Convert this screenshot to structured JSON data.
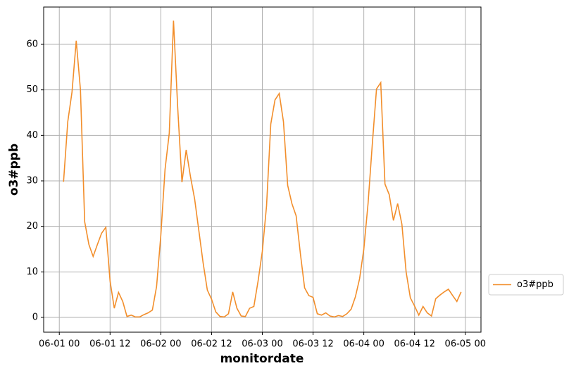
{
  "chart_data": {
    "type": "line",
    "x": [
      "06-01 01",
      "06-01 02",
      "06-01 03",
      "06-01 04",
      "06-01 05",
      "06-01 06",
      "06-01 07",
      "06-01 08",
      "06-01 09",
      "06-01 10",
      "06-01 11",
      "06-01 12",
      "06-01 13",
      "06-01 14",
      "06-01 15",
      "06-01 16",
      "06-01 17",
      "06-01 18",
      "06-01 19",
      "06-01 20",
      "06-01 21",
      "06-01 22",
      "06-01 23",
      "06-02 00",
      "06-02 01",
      "06-02 02",
      "06-02 03",
      "06-02 04",
      "06-02 05",
      "06-02 06",
      "06-02 07",
      "06-02 08",
      "06-02 09",
      "06-02 10",
      "06-02 11",
      "06-02 12",
      "06-02 13",
      "06-02 14",
      "06-02 15",
      "06-02 16",
      "06-02 17",
      "06-02 18",
      "06-02 19",
      "06-02 20",
      "06-02 21",
      "06-02 22",
      "06-02 23",
      "06-03 00",
      "06-03 01",
      "06-03 02",
      "06-03 03",
      "06-03 04",
      "06-03 05",
      "06-03 06",
      "06-03 07",
      "06-03 08",
      "06-03 09",
      "06-03 10",
      "06-03 11",
      "06-03 12",
      "06-03 13",
      "06-03 14",
      "06-03 15",
      "06-03 16",
      "06-03 17",
      "06-03 18",
      "06-03 19",
      "06-03 20",
      "06-03 21",
      "06-03 22",
      "06-03 23",
      "06-04 00",
      "06-04 01",
      "06-04 02",
      "06-04 03",
      "06-04 04",
      "06-04 05",
      "06-04 06",
      "06-04 07",
      "06-04 08",
      "06-04 09",
      "06-04 10",
      "06-04 11",
      "06-04 12",
      "06-04 13",
      "06-04 14",
      "06-04 15",
      "06-04 16",
      "06-04 17",
      "06-04 18",
      "06-04 19",
      "06-04 20",
      "06-04 21",
      "06-04 22",
      "06-04 23"
    ],
    "series": [
      {
        "name": "o3#ppb",
        "color": "#f28e2b",
        "values": [
          29.8,
          43,
          49.5,
          60.8,
          50,
          21,
          16,
          13.4,
          16,
          18.5,
          19.8,
          8,
          2,
          5.5,
          3.5,
          0.2,
          0.5,
          0.1,
          0.1,
          0.6,
          1,
          1.6,
          6.8,
          18,
          32.5,
          40.5,
          65.2,
          46,
          29.7,
          36.8,
          31,
          26,
          19,
          12,
          6,
          4,
          1.2,
          0.2,
          0.1,
          0.8,
          5.6,
          2,
          0.3,
          0.2,
          2,
          2.4,
          8,
          14.5,
          24.5,
          42.5,
          47.8,
          49.2,
          43,
          29,
          25,
          22.3,
          14,
          6.5,
          4.8,
          4.4,
          0.8,
          0.5,
          1,
          0.3,
          0.1,
          0.4,
          0.2,
          0.8,
          1.8,
          4.5,
          8.5,
          15,
          25,
          38,
          50.2,
          51.6,
          29.3,
          27,
          21.3,
          25,
          20.5,
          10,
          4.3,
          2.5,
          0.5,
          2.4,
          1,
          0.3,
          4.1,
          4.9,
          5.6,
          6.2,
          4.8,
          3.5,
          5.6
        ]
      }
    ],
    "x_label": "monitordate",
    "y_label": "o3#ppb",
    "xticks": [
      "06-01 00",
      "06-01 12",
      "06-02 00",
      "06-02 12",
      "06-03 00",
      "06-03 12",
      "06-04 00",
      "06-04 12",
      "06-05 00"
    ],
    "ylim": [
      -3.25,
      68.2
    ],
    "yticks": [
      0,
      10,
      20,
      30,
      40,
      50,
      60
    ],
    "grid": true,
    "legend": "outside right"
  }
}
